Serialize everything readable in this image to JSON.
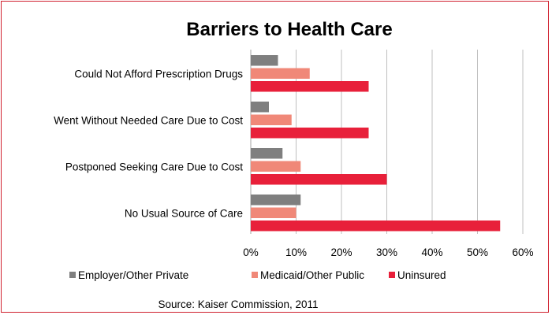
{
  "chart_data": {
    "type": "bar",
    "orientation": "horizontal",
    "title": "Barriers to Health Care",
    "source": "Source: Kaiser Commission, 2011",
    "categories": [
      "Could Not Afford Prescription Drugs",
      "Went Without Needed Care Due to Cost",
      "Postponed Seeking Care Due to Cost",
      "No Usual Source of Care"
    ],
    "series": [
      {
        "name": "Employer/Other Private",
        "color": "#7f7f7f",
        "values": [
          6,
          4,
          7,
          11
        ]
      },
      {
        "name": "Medicaid/Other Public",
        "color": "#f08878",
        "values": [
          13,
          9,
          11,
          10
        ]
      },
      {
        "name": "Uninsured",
        "color": "#e8203a",
        "values": [
          26,
          26,
          30,
          55
        ]
      }
    ],
    "xlim": [
      0,
      60
    ],
    "xticks": [
      "0%",
      "10%",
      "20%",
      "30%",
      "40%",
      "50%",
      "60%"
    ],
    "grid": true,
    "legend_position": "bottom"
  }
}
